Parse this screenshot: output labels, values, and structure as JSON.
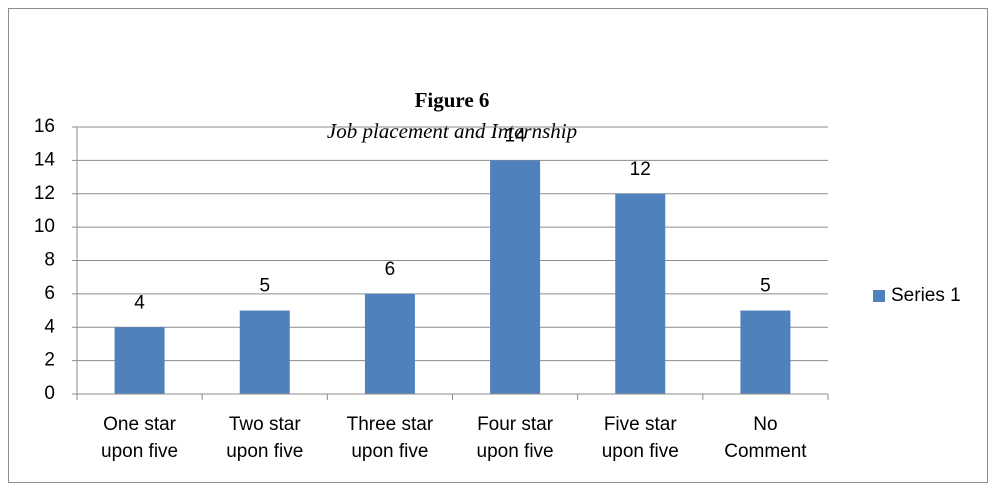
{
  "chart_data": {
    "type": "bar",
    "title": "Figure 6",
    "subtitle": "Job placement and Internship",
    "categories": [
      "One star\nupon five",
      "Two star\nupon five",
      "Three star\nupon five",
      "Four star\nupon five",
      "Five star\nupon five",
      "No\nComment"
    ],
    "series": [
      {
        "name": "Series 1",
        "color": "#4f81bd",
        "values": [
          4,
          5,
          6,
          14,
          12,
          5
        ]
      }
    ],
    "ylim": [
      0,
      16
    ],
    "yticks": [
      0,
      2,
      4,
      6,
      8,
      10,
      12,
      14,
      16
    ],
    "grid": true,
    "legend": "right"
  }
}
